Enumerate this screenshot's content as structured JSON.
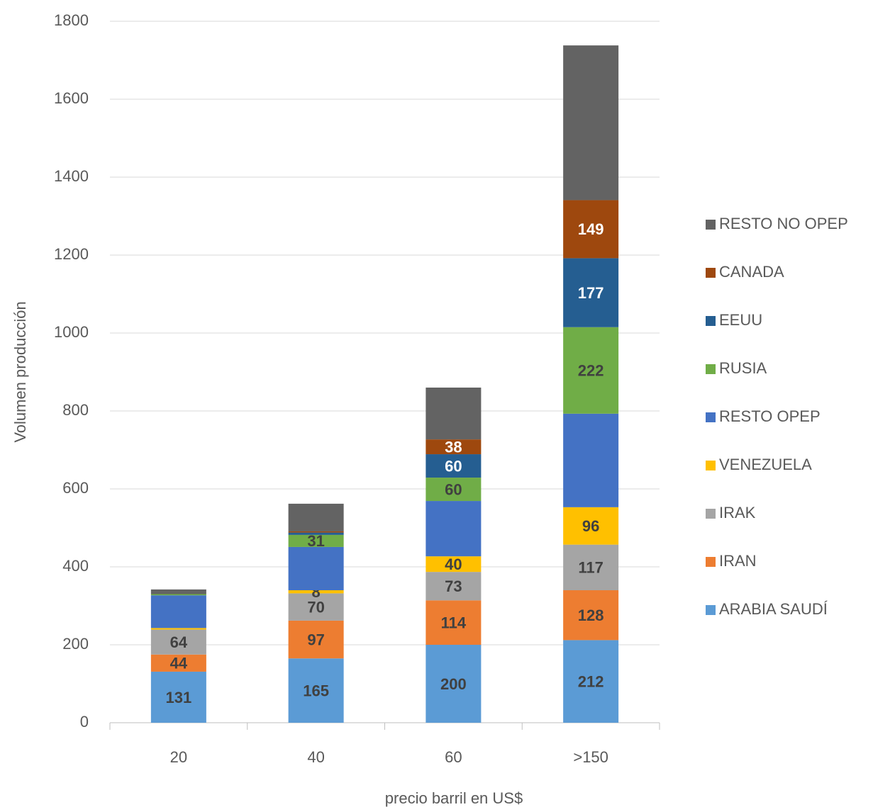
{
  "chart_data": {
    "type": "stacked_bar",
    "x_label": "precio barril en US$",
    "y_label": "Volumen producción",
    "categories": [
      "20",
      "40",
      "60",
      ">150"
    ],
    "ylim": [
      0,
      1800
    ],
    "yticks": [
      0,
      200,
      400,
      600,
      800,
      1000,
      1200,
      1400,
      1600,
      1800
    ],
    "grid": true,
    "legend": "right",
    "series": [
      {
        "name": "ARABIA SAUDÍ",
        "color": "#5b9bd5",
        "values": [
          131,
          165,
          200,
          212
        ],
        "value_labels": [
          "131",
          "165",
          "200",
          "212"
        ]
      },
      {
        "name": "IRAN",
        "color": "#ed7d31",
        "values": [
          44,
          97,
          114,
          128
        ],
        "value_labels": [
          "44",
          "97",
          "114",
          "128"
        ]
      },
      {
        "name": "IRAK",
        "color": "#a5a5a5",
        "values": [
          64,
          70,
          73,
          117
        ],
        "value_labels": [
          "64",
          "70",
          "73",
          "117"
        ]
      },
      {
        "name": "VENEZUELA",
        "color": "#ffc000",
        "values": [
          4,
          8,
          40,
          96
        ],
        "value_labels": [
          null,
          "8",
          "40",
          "96"
        ]
      },
      {
        "name": "RESTO OPEP",
        "color": "#4472c4",
        "values": [
          84,
          111,
          142,
          240
        ],
        "value_labels": [
          null,
          null,
          null,
          null
        ]
      },
      {
        "name": "RUSIA",
        "color": "#70ad47",
        "values": [
          3,
          31,
          60,
          222
        ],
        "value_labels": [
          null,
          "31",
          "60",
          "222"
        ]
      },
      {
        "name": "EEUU",
        "color": "#255e91",
        "values": [
          0,
          6,
          60,
          177
        ],
        "value_labels": [
          null,
          null,
          "60",
          "177"
        ]
      },
      {
        "name": "CANADA",
        "color": "#9e480e",
        "values": [
          0,
          3,
          38,
          149
        ],
        "value_labels": [
          null,
          null,
          "38",
          "149"
        ]
      },
      {
        "name": "RESTO NO OPEP",
        "color": "#636363",
        "values": [
          12,
          71,
          133,
          397
        ],
        "value_labels": [
          null,
          null,
          null,
          null
        ]
      }
    ]
  }
}
